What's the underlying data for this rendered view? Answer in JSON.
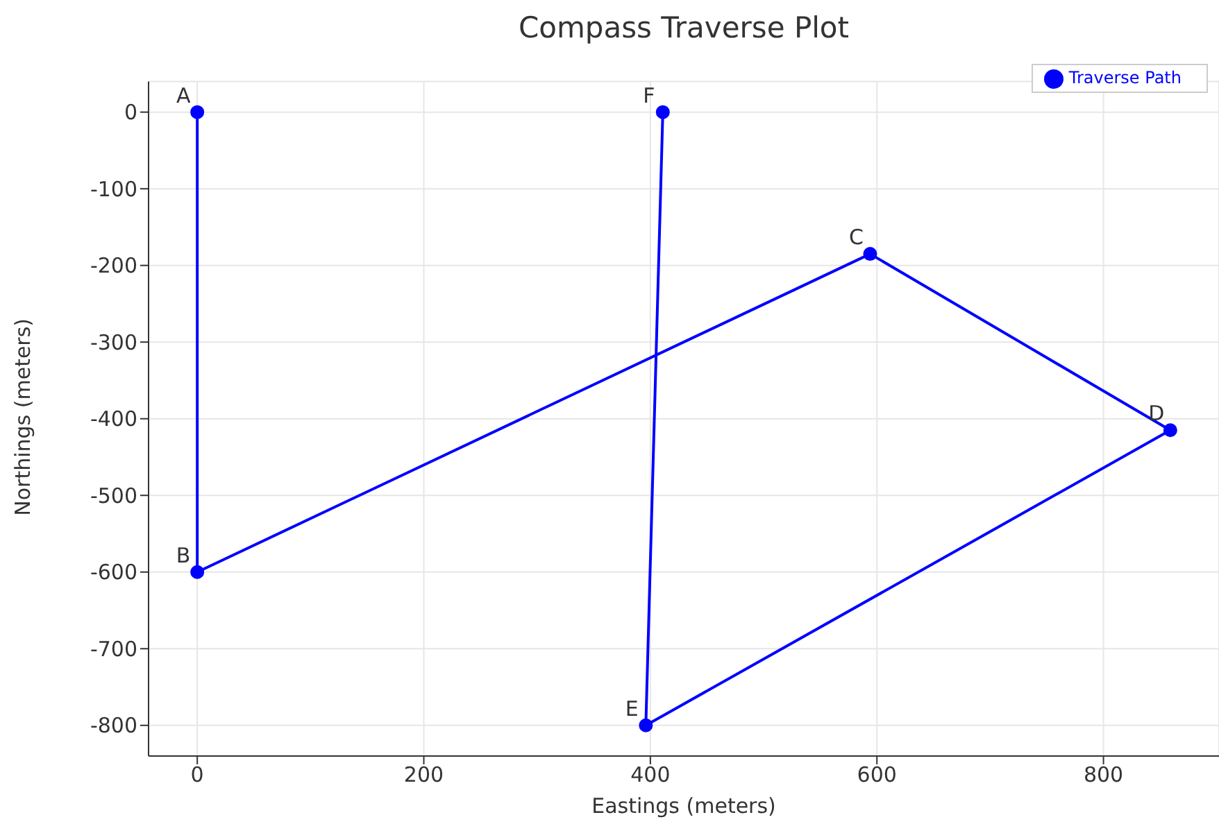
{
  "chart_data": {
    "type": "line",
    "title": "Compass Traverse Plot",
    "xlabel": "Eastings (meters)",
    "ylabel": "Northings (meters)",
    "x": [
      0,
      0,
      594,
      859,
      396,
      411
    ],
    "series": [
      {
        "name": "Traverse Path",
        "color": "#0000ff",
        "values": [
          0,
          -600,
          -185,
          -415,
          -800,
          0
        ]
      }
    ],
    "xlim": [
      -43,
      902
    ],
    "xticks": [
      0,
      200,
      400,
      600,
      800
    ],
    "ylim": [
      -840,
      40
    ],
    "yticks": [
      0,
      -100,
      -200,
      -300,
      -400,
      -500,
      -600,
      -700,
      -800
    ],
    "annotations": [
      {
        "text": "A",
        "x": 0,
        "y": 0
      },
      {
        "text": "B",
        "x": 0,
        "y": -600
      },
      {
        "text": "C",
        "x": 594,
        "y": -185
      },
      {
        "text": "D",
        "x": 859,
        "y": -415
      },
      {
        "text": "E",
        "x": 396,
        "y": -800
      },
      {
        "text": "F",
        "x": 411,
        "y": 0
      }
    ],
    "grid": true,
    "legend": "top right",
    "marker": "circle",
    "line_style": "solid"
  }
}
